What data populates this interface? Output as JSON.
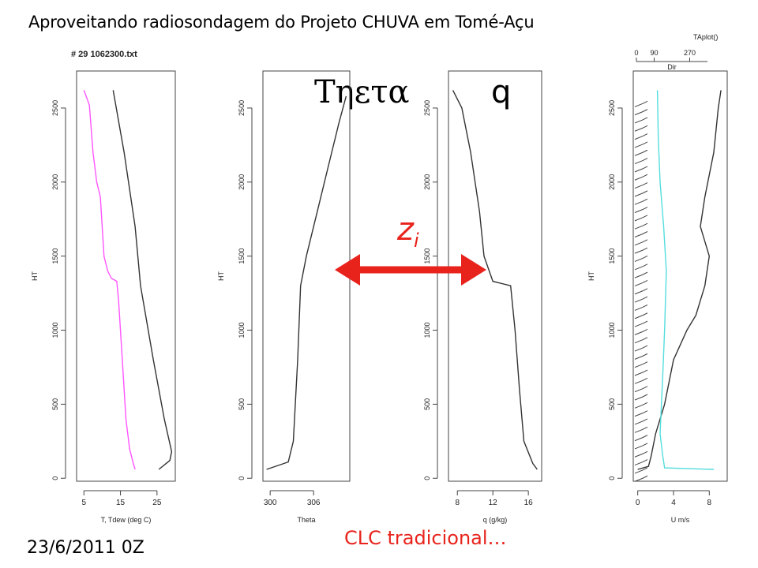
{
  "title": "Aproveitando radiosondagem do Projeto CHUVA em Tomé-Açu",
  "file_label": "# 29 1062300.txt",
  "taplot_label": "TAplot()",
  "theta_big_label": "Τηετα",
  "q_big_label": "q",
  "zi_label": "z",
  "zi_sub": "i",
  "clc_label": "CLC tradicional…",
  "date_label": "23/6/2011 0Z",
  "colors": {
    "temp": "#333333",
    "dewpoint": "#ff55ff",
    "wind": "#55dddd",
    "arrow": "#e8231c"
  },
  "chart_data": [
    {
      "type": "line",
      "title": "",
      "xlabel": "T, Tdew (deg C)",
      "ylabel": "HT",
      "xlim": [
        3,
        30
      ],
      "ylim": [
        -20,
        2750
      ],
      "xticks": [
        5,
        15,
        25
      ],
      "yticks": [
        0,
        500,
        1000,
        1500,
        2000,
        2500
      ],
      "series": [
        {
          "values": [
            [
              13,
              2620
            ],
            [
              16,
              2200
            ],
            [
              19,
              1700
            ],
            [
              20.5,
              1300
            ],
            [
              24,
              800
            ],
            [
              27,
              400
            ],
            [
              29,
              180
            ],
            [
              28.5,
              120
            ],
            [
              25.5,
              60
            ]
          ]
        },
        {
          "values": [
            [
              5,
              2620
            ],
            [
              6.5,
              2520
            ],
            [
              7.5,
              2200
            ],
            [
              8.5,
              2000
            ],
            [
              9.5,
              1900
            ],
            [
              10.5,
              1500
            ],
            [
              11.5,
              1400
            ],
            [
              12.5,
              1350
            ],
            [
              14,
              1330
            ],
            [
              14.5,
              1200
            ],
            [
              15.5,
              800
            ],
            [
              16.5,
              400
            ],
            [
              17.5,
              200
            ],
            [
              18.5,
              100
            ],
            [
              19,
              60
            ]
          ]
        }
      ]
    },
    {
      "type": "line",
      "title": "",
      "xlabel": "Theta",
      "ylabel": "HT",
      "xlim": [
        299,
        311
      ],
      "ylim": [
        -20,
        2750
      ],
      "xticks": [
        300,
        306
      ],
      "yticks": [
        0,
        500,
        1000,
        1500,
        2000,
        2500
      ],
      "series": [
        {
          "values": [
            [
              299.5,
              60
            ],
            [
              302.5,
              110
            ],
            [
              303.2,
              250
            ],
            [
              303.8,
              800
            ],
            [
              304.2,
              1300
            ],
            [
              305,
              1500
            ],
            [
              306.5,
              1800
            ],
            [
              308,
              2100
            ],
            [
              309.5,
              2400
            ],
            [
              310.5,
              2580
            ]
          ]
        }
      ]
    },
    {
      "type": "line",
      "title": "",
      "xlabel": "q (g/kg)",
      "ylabel": "",
      "xlim": [
        7,
        17.5
      ],
      "ylim": [
        -20,
        2750
      ],
      "xticks": [
        8,
        12,
        16
      ],
      "yticks": [
        0,
        500,
        1000,
        1500,
        2000,
        2500
      ],
      "series": [
        {
          "values": [
            [
              17,
              60
            ],
            [
              16.5,
              100
            ],
            [
              15.5,
              250
            ],
            [
              15,
              600
            ],
            [
              14.5,
              1000
            ],
            [
              14,
              1300
            ],
            [
              12,
              1330
            ],
            [
              11,
              1500
            ],
            [
              10.5,
              1800
            ],
            [
              10,
              2000
            ],
            [
              9.5,
              2200
            ],
            [
              8.5,
              2500
            ],
            [
              7.5,
              2620
            ]
          ]
        }
      ]
    },
    {
      "type": "line",
      "title": "",
      "xlabel": "U m/s",
      "ylabel": "HT",
      "xlim": [
        -0.5,
        10
      ],
      "ylim": [
        -20,
        2750
      ],
      "xticks": [
        0,
        4,
        8
      ],
      "yticks": [
        0,
        500,
        1000,
        1500,
        2000,
        2500
      ],
      "top_axis": {
        "label": "Dir",
        "ticks": [
          0,
          90,
          270
        ]
      },
      "series": [
        {
          "values": [
            [
              0,
              60
            ],
            [
              1.2,
              80
            ],
            [
              1.5,
              150
            ],
            [
              2,
              300
            ],
            [
              3,
              500
            ],
            [
              4,
              800
            ],
            [
              5.5,
              1000
            ],
            [
              6.5,
              1100
            ],
            [
              7.5,
              1300
            ],
            [
              8,
              1500
            ],
            [
              7,
              1700
            ],
            [
              7.5,
              1900
            ],
            [
              8.5,
              2200
            ],
            [
              9,
              2500
            ],
            [
              9.3,
              2620
            ]
          ]
        },
        {
          "values": [
            [
              8.5,
              60
            ],
            [
              3,
              70
            ],
            [
              2.8,
              150
            ],
            [
              2.5,
              300
            ],
            [
              2.8,
              700
            ],
            [
              3,
              1000
            ],
            [
              3.2,
              1400
            ],
            [
              2.9,
              1700
            ],
            [
              2.5,
              2000
            ],
            [
              2.3,
              2300
            ],
            [
              2.2,
              2620
            ]
          ]
        }
      ]
    }
  ]
}
